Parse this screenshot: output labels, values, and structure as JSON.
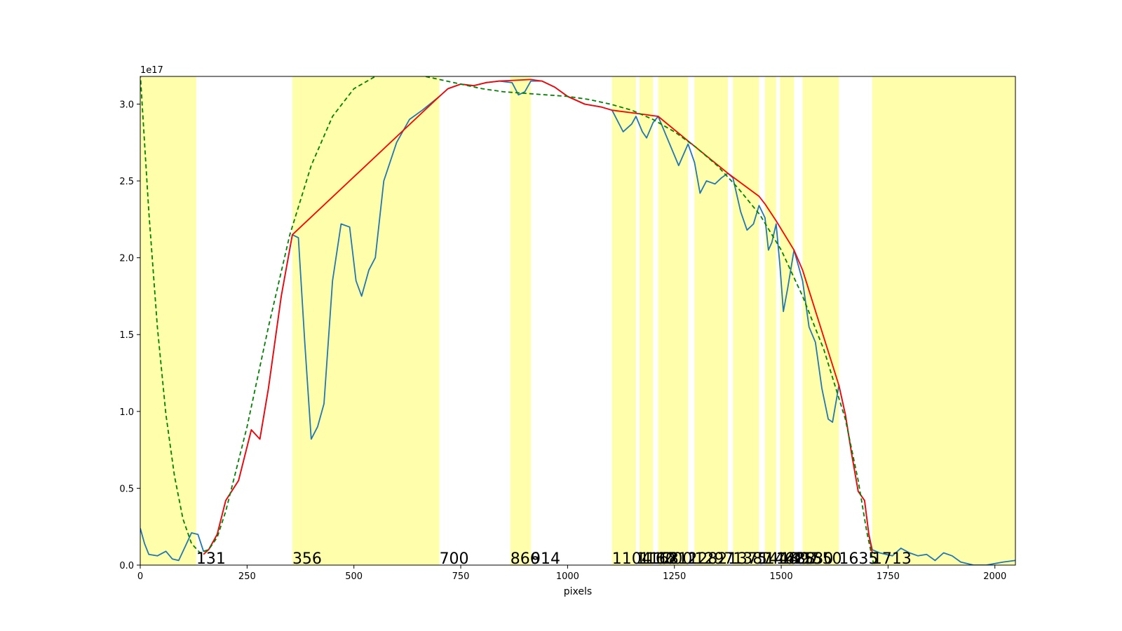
{
  "chart_data": {
    "type": "line",
    "title": "",
    "xlabel": "pixels",
    "ylabel": "",
    "y_offset_text": "1e17",
    "xlim": [
      0,
      2048
    ],
    "ylim": [
      0,
      3.18
    ],
    "y_scale_note": "values in units of 1e17",
    "grid": false,
    "legend": "none",
    "x_ticks": [
      0,
      250,
      500,
      750,
      1000,
      1250,
      1500,
      1750,
      2000
    ],
    "x_tick_labels": [
      "0",
      "250",
      "500",
      "750",
      "1000",
      "1250",
      "1500",
      "1750",
      "2000"
    ],
    "y_ticks": [
      0,
      0.5,
      1.0,
      1.5,
      2.0,
      2.5,
      3.0
    ],
    "y_tick_labels": [
      "0.0",
      "0.5",
      "1.0",
      "1.5",
      "2.0",
      "2.5",
      "3.0"
    ],
    "colors": {
      "spectrum": "#1f77b4",
      "envelope": "#ff0000",
      "fit": "#008000",
      "band": "#ffff66"
    },
    "shaded_bands": [
      [
        0,
        131
      ],
      [
        356,
        700
      ],
      [
        866,
        914
      ],
      [
        1104,
        1160
      ],
      [
        1168,
        1200
      ],
      [
        1212,
        1282
      ],
      [
        1297,
        1375
      ],
      [
        1387,
        1448
      ],
      [
        1462,
        1488
      ],
      [
        1497,
        1530
      ],
      [
        1550,
        1635
      ],
      [
        1713,
        2048
      ]
    ],
    "boundary_labels": [
      {
        "x": 131,
        "text": "131"
      },
      {
        "x": 356,
        "text": "356"
      },
      {
        "x": 700,
        "text": "700"
      },
      {
        "x": 866,
        "text": "866"
      },
      {
        "x": 914,
        "text": "914"
      },
      {
        "x": 1104,
        "text": "1104"
      },
      {
        "x": 1160,
        "text": "1160"
      },
      {
        "x": 1168,
        "text": "1168"
      },
      {
        "x": 1200,
        "text": "1200"
      },
      {
        "x": 1212,
        "text": "1212"
      },
      {
        "x": 1282,
        "text": "1282"
      },
      {
        "x": 1297,
        "text": "1297"
      },
      {
        "x": 1375,
        "text": "1375"
      },
      {
        "x": 1387,
        "text": "1387"
      },
      {
        "x": 1448,
        "text": "1448"
      },
      {
        "x": 1462,
        "text": "1462"
      },
      {
        "x": 1488,
        "text": "1488"
      },
      {
        "x": 1497,
        "text": "1497"
      },
      {
        "x": 1530,
        "text": "1530"
      },
      {
        "x": 1550,
        "text": "1550"
      },
      {
        "x": 1635,
        "text": "1635"
      },
      {
        "x": 1713,
        "text": "1713"
      }
    ],
    "series": [
      {
        "style": "solid",
        "points": [
          [
            0,
            0.24
          ],
          [
            10,
            0.14
          ],
          [
            20,
            0.07
          ],
          [
            40,
            0.06
          ],
          [
            60,
            0.09
          ],
          [
            75,
            0.04
          ],
          [
            90,
            0.03
          ],
          [
            105,
            0.12
          ],
          [
            120,
            0.21
          ],
          [
            135,
            0.2
          ],
          [
            148,
            0.09
          ],
          [
            160,
            0.1
          ],
          [
            180,
            0.2
          ],
          [
            200,
            0.42
          ],
          [
            230,
            0.55
          ],
          [
            260,
            0.88
          ],
          [
            280,
            0.82
          ],
          [
            300,
            1.15
          ],
          [
            330,
            1.75
          ],
          [
            356,
            2.15
          ],
          [
            370,
            2.13
          ],
          [
            385,
            1.45
          ],
          [
            400,
            0.82
          ],
          [
            415,
            0.9
          ],
          [
            430,
            1.05
          ],
          [
            450,
            1.85
          ],
          [
            470,
            2.22
          ],
          [
            490,
            2.2
          ],
          [
            505,
            1.85
          ],
          [
            518,
            1.75
          ],
          [
            535,
            1.92
          ],
          [
            550,
            2.0
          ],
          [
            570,
            2.5
          ],
          [
            600,
            2.75
          ],
          [
            630,
            2.9
          ],
          [
            660,
            2.96
          ],
          [
            700,
            3.05
          ],
          [
            720,
            3.1
          ],
          [
            750,
            3.13
          ],
          [
            780,
            3.12
          ],
          [
            810,
            3.14
          ],
          [
            840,
            3.15
          ],
          [
            870,
            3.14
          ],
          [
            885,
            3.06
          ],
          [
            900,
            3.08
          ],
          [
            914,
            3.15
          ],
          [
            940,
            3.15
          ],
          [
            970,
            3.11
          ],
          [
            1000,
            3.05
          ],
          [
            1040,
            3.0
          ],
          [
            1080,
            2.98
          ],
          [
            1104,
            2.96
          ],
          [
            1130,
            2.82
          ],
          [
            1150,
            2.87
          ],
          [
            1160,
            2.92
          ],
          [
            1175,
            2.82
          ],
          [
            1185,
            2.78
          ],
          [
            1200,
            2.88
          ],
          [
            1212,
            2.92
          ],
          [
            1230,
            2.8
          ],
          [
            1260,
            2.6
          ],
          [
            1282,
            2.74
          ],
          [
            1297,
            2.62
          ],
          [
            1310,
            2.42
          ],
          [
            1325,
            2.5
          ],
          [
            1345,
            2.48
          ],
          [
            1360,
            2.52
          ],
          [
            1375,
            2.55
          ],
          [
            1387,
            2.52
          ],
          [
            1405,
            2.3
          ],
          [
            1420,
            2.18
          ],
          [
            1435,
            2.22
          ],
          [
            1448,
            2.34
          ],
          [
            1462,
            2.26
          ],
          [
            1470,
            2.05
          ],
          [
            1478,
            2.1
          ],
          [
            1488,
            2.22
          ],
          [
            1497,
            1.95
          ],
          [
            1505,
            1.65
          ],
          [
            1515,
            1.8
          ],
          [
            1530,
            2.05
          ],
          [
            1550,
            1.85
          ],
          [
            1565,
            1.55
          ],
          [
            1580,
            1.45
          ],
          [
            1595,
            1.15
          ],
          [
            1610,
            0.95
          ],
          [
            1620,
            0.93
          ],
          [
            1635,
            1.17
          ],
          [
            1650,
            0.98
          ],
          [
            1665,
            0.72
          ],
          [
            1680,
            0.48
          ],
          [
            1695,
            0.42
          ],
          [
            1705,
            0.2
          ],
          [
            1713,
            0.1
          ],
          [
            1730,
            0.08
          ],
          [
            1760,
            0.06
          ],
          [
            1780,
            0.11
          ],
          [
            1800,
            0.08
          ],
          [
            1820,
            0.06
          ],
          [
            1840,
            0.07
          ],
          [
            1860,
            0.03
          ],
          [
            1880,
            0.08
          ],
          [
            1900,
            0.06
          ],
          [
            1920,
            0.02
          ],
          [
            1950,
            0.0
          ],
          [
            1980,
            0.0
          ],
          [
            2000,
            0.01
          ],
          [
            2020,
            0.02
          ],
          [
            2048,
            0.03
          ]
        ]
      },
      {
        "style": "solid",
        "points": [
          [
            148,
            0.07
          ],
          [
            160,
            0.1
          ],
          [
            180,
            0.2
          ],
          [
            200,
            0.42
          ],
          [
            230,
            0.55
          ],
          [
            260,
            0.88
          ],
          [
            280,
            0.82
          ],
          [
            300,
            1.15
          ],
          [
            330,
            1.75
          ],
          [
            356,
            2.15
          ],
          [
            700,
            3.05
          ],
          [
            720,
            3.1
          ],
          [
            750,
            3.13
          ],
          [
            780,
            3.12
          ],
          [
            810,
            3.14
          ],
          [
            840,
            3.15
          ],
          [
            914,
            3.16
          ],
          [
            940,
            3.15
          ],
          [
            970,
            3.11
          ],
          [
            1000,
            3.05
          ],
          [
            1040,
            3.0
          ],
          [
            1080,
            2.98
          ],
          [
            1104,
            2.96
          ],
          [
            1160,
            2.94
          ],
          [
            1212,
            2.92
          ],
          [
            1282,
            2.76
          ],
          [
            1375,
            2.55
          ],
          [
            1448,
            2.4
          ],
          [
            1462,
            2.35
          ],
          [
            1488,
            2.24
          ],
          [
            1530,
            2.05
          ],
          [
            1550,
            1.92
          ],
          [
            1635,
            1.17
          ],
          [
            1650,
            0.98
          ],
          [
            1665,
            0.72
          ],
          [
            1680,
            0.48
          ],
          [
            1695,
            0.42
          ],
          [
            1705,
            0.2
          ],
          [
            1713,
            0.08
          ]
        ]
      },
      {
        "style": "dashed",
        "points": [
          [
            0,
            3.2
          ],
          [
            20,
            2.3
          ],
          [
            40,
            1.55
          ],
          [
            60,
            0.98
          ],
          [
            80,
            0.58
          ],
          [
            100,
            0.3
          ],
          [
            120,
            0.14
          ],
          [
            140,
            0.08
          ],
          [
            160,
            0.1
          ],
          [
            180,
            0.18
          ],
          [
            200,
            0.35
          ],
          [
            250,
            0.9
          ],
          [
            300,
            1.55
          ],
          [
            350,
            2.15
          ],
          [
            400,
            2.6
          ],
          [
            450,
            2.92
          ],
          [
            500,
            3.1
          ],
          [
            550,
            3.18
          ],
          [
            600,
            3.2
          ],
          [
            650,
            3.19
          ],
          [
            700,
            3.16
          ],
          [
            750,
            3.13
          ],
          [
            800,
            3.1
          ],
          [
            850,
            3.08
          ],
          [
            900,
            3.07
          ],
          [
            950,
            3.06
          ],
          [
            1000,
            3.05
          ],
          [
            1050,
            3.03
          ],
          [
            1100,
            3.0
          ],
          [
            1150,
            2.96
          ],
          [
            1200,
            2.9
          ],
          [
            1250,
            2.82
          ],
          [
            1300,
            2.72
          ],
          [
            1350,
            2.6
          ],
          [
            1400,
            2.45
          ],
          [
            1450,
            2.28
          ],
          [
            1500,
            2.05
          ],
          [
            1550,
            1.75
          ],
          [
            1600,
            1.4
          ],
          [
            1650,
            0.95
          ],
          [
            1680,
            0.55
          ],
          [
            1700,
            0.22
          ],
          [
            1715,
            0.02
          ],
          [
            1725,
            0.0
          ]
        ]
      }
    ]
  }
}
